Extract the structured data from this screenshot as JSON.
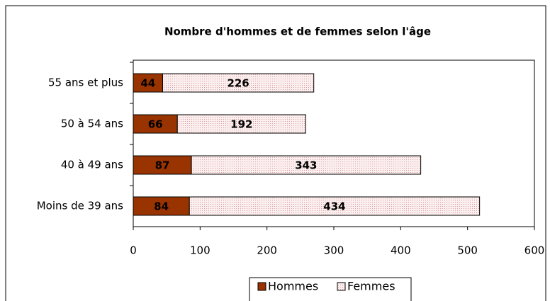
{
  "chart_data": {
    "type": "stacked-bar-horizontal",
    "title": "Nombre d'hommes et de femmes selon l'âge",
    "categories": [
      "55 ans et plus",
      "50 à 54 ans",
      "40 à 49 ans",
      "Moins de 39 ans"
    ],
    "series": [
      {
        "name": "Hommes",
        "color": "#993300",
        "values": [
          44,
          66,
          87,
          84
        ]
      },
      {
        "name": "Femmes",
        "color": "#f6e2e2",
        "values": [
          226,
          192,
          343,
          434
        ]
      }
    ],
    "xlim": [
      0,
      600
    ],
    "xticks": [
      0,
      100,
      200,
      300,
      400,
      500,
      600
    ]
  }
}
